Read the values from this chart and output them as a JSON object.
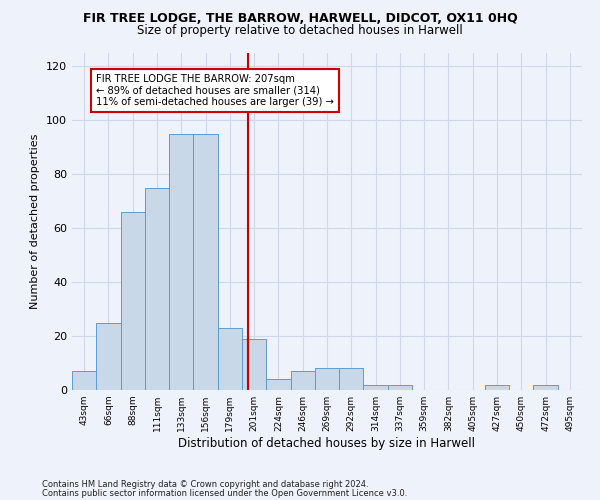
{
  "title1": "FIR TREE LODGE, THE BARROW, HARWELL, DIDCOT, OX11 0HQ",
  "title2": "Size of property relative to detached houses in Harwell",
  "xlabel": "Distribution of detached houses by size in Harwell",
  "ylabel": "Number of detached properties",
  "bar_color": "#c8d8e8",
  "bar_edge_color": "#5b9bd5",
  "grid_color": "#d0d8e8",
  "bg_color": "#eef2fa",
  "annotation_line_color": "#cc0000",
  "annotation_box_color": "#cc0000",
  "property_size": 207,
  "annotation_text_line1": "FIR TREE LODGE THE BARROW: 207sqm",
  "annotation_text_line2": "← 89% of detached houses are smaller (314)",
  "annotation_text_line3": "11% of semi-detached houses are larger (39) →",
  "bin_labels": [
    "43sqm",
    "66sqm",
    "88sqm",
    "111sqm",
    "133sqm",
    "156sqm",
    "179sqm",
    "201sqm",
    "224sqm",
    "246sqm",
    "269sqm",
    "292sqm",
    "314sqm",
    "337sqm",
    "359sqm",
    "382sqm",
    "405sqm",
    "427sqm",
    "450sqm",
    "472sqm",
    "495sqm"
  ],
  "counts": [
    7,
    25,
    66,
    75,
    95,
    95,
    23,
    19,
    4,
    7,
    8,
    8,
    2,
    2,
    0,
    0,
    0,
    2,
    0,
    2,
    0
  ],
  "ylim": [
    0,
    125
  ],
  "yticks": [
    0,
    20,
    40,
    60,
    80,
    100,
    120
  ],
  "footnote1": "Contains HM Land Registry data © Crown copyright and database right 2024.",
  "footnote2": "Contains public sector information licensed under the Open Government Licence v3.0."
}
